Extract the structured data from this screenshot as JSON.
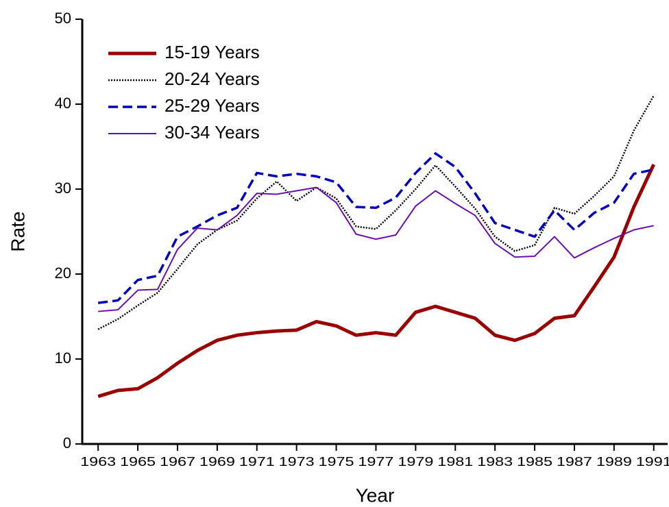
{
  "chart_data": {
    "type": "line",
    "x_label": "Year",
    "y_label": "Rate",
    "x": [
      1963,
      1964,
      1965,
      1966,
      1967,
      1968,
      1969,
      1970,
      1971,
      1972,
      1973,
      1974,
      1975,
      1976,
      1977,
      1978,
      1979,
      1980,
      1981,
      1982,
      1983,
      1984,
      1985,
      1986,
      1987,
      1988,
      1989,
      1990,
      1991
    ],
    "series": [
      {
        "name": "15-19 Years",
        "color": "#990000",
        "style": "thick",
        "values": [
          5.6,
          6.3,
          6.5,
          7.8,
          9.5,
          11.0,
          12.2,
          12.8,
          13.1,
          13.3,
          13.4,
          14.4,
          13.9,
          12.8,
          13.1,
          12.8,
          15.5,
          16.2,
          15.5,
          14.8,
          12.8,
          12.2,
          13.0,
          14.8,
          15.1,
          18.5,
          22.0,
          27.9,
          32.9
        ]
      },
      {
        "name": "20-24 Years",
        "color": "#000000",
        "style": "dotted",
        "values": [
          13.5,
          14.7,
          16.3,
          17.8,
          20.6,
          23.5,
          25.2,
          26.3,
          28.9,
          30.9,
          28.6,
          30.2,
          28.9,
          25.6,
          25.3,
          27.5,
          30.0,
          32.8,
          30.3,
          27.7,
          24.4,
          22.7,
          23.4,
          27.8,
          27.1,
          29.2,
          31.5,
          36.9,
          41.0
        ]
      },
      {
        "name": "25-29 Years",
        "color": "#0000bb",
        "style": "dashed",
        "values": [
          16.6,
          16.9,
          19.3,
          19.8,
          24.4,
          25.6,
          26.9,
          27.8,
          31.9,
          31.5,
          31.8,
          31.5,
          30.8,
          27.9,
          27.8,
          29.0,
          31.9,
          34.2,
          32.6,
          29.5,
          26.0,
          25.2,
          24.4,
          27.5,
          25.2,
          27.2,
          28.4,
          31.8,
          32.3
        ]
      },
      {
        "name": "30-34 Years",
        "color": "#6a0dad",
        "style": "thin",
        "values": [
          15.6,
          15.8,
          18.1,
          18.2,
          22.9,
          25.4,
          25.2,
          26.9,
          29.5,
          29.4,
          29.8,
          30.2,
          28.4,
          24.7,
          24.1,
          24.6,
          28.0,
          29.8,
          28.3,
          26.9,
          23.6,
          22.0,
          22.1,
          24.4,
          21.9,
          23.1,
          24.2,
          25.2,
          25.7
        ]
      }
    ],
    "xlim": [
      1962.2,
      1991.7
    ],
    "xticks": [
      1963,
      1965,
      1967,
      1969,
      1971,
      1973,
      1975,
      1977,
      1979,
      1981,
      1983,
      1985,
      1987,
      1989,
      1991
    ],
    "ylim": [
      0,
      50
    ],
    "yticks": [
      0,
      10,
      20,
      30,
      40,
      50
    ],
    "legend": "upper left"
  }
}
